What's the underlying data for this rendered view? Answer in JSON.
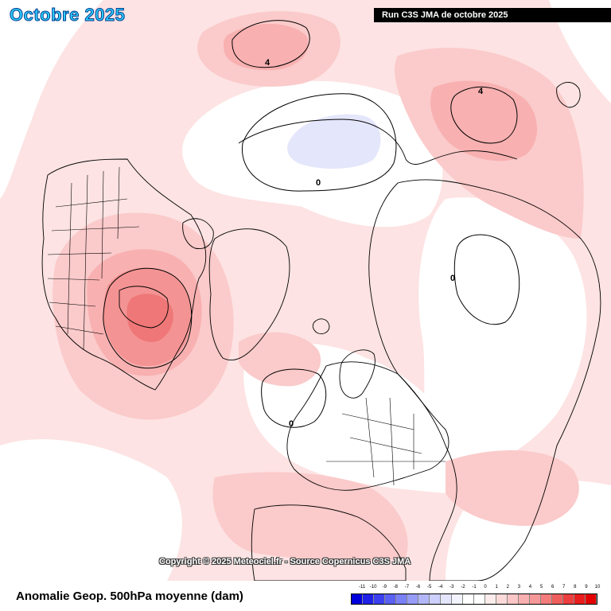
{
  "map": {
    "title": "Octobre 2025",
    "run_label": "Run C3S JMA de octobre 2025",
    "copyright": "Copyright © 2025 Meteociel.fr - Source Copernicus C3S JMA",
    "contour_labels": [
      "4",
      "4",
      "0",
      "0",
      "0"
    ]
  },
  "legend": {
    "label": "Anomalie Geop. 500hPa moyenne (dam)",
    "ticks": [
      "-11",
      "-10",
      "-9",
      "-8",
      "-7",
      "-6",
      "-5",
      "-4",
      "-3",
      "-2",
      "-1",
      "0",
      "1",
      "2",
      "3",
      "4",
      "5",
      "6",
      "7",
      "8",
      "9",
      "10"
    ],
    "colors": [
      "#0000dd",
      "#1f22e6",
      "#3b40ee",
      "#5a60f2",
      "#7a80f5",
      "#979cf7",
      "#b3b7fa",
      "#cdd0fc",
      "#e3e5fd",
      "#f2f3fe",
      "#ffffff",
      "#ffffff",
      "#fdecec",
      "#fcdada",
      "#fbc6c6",
      "#f9b0b0",
      "#f79898",
      "#f47c7c",
      "#f05d5d",
      "#ec3e3e",
      "#e81e1e",
      "#e30000"
    ]
  },
  "colors": {
    "anomaly_plus1": "#fde3e3",
    "anomaly_plus2": "#fbcaca",
    "anomaly_plus3": "#f8b0b0",
    "anomaly_plus4": "#f49393",
    "anomaly_plus5": "#ef7777",
    "anomaly_minus1": "#e4e6fb",
    "title_color": "#2fd0ff"
  }
}
